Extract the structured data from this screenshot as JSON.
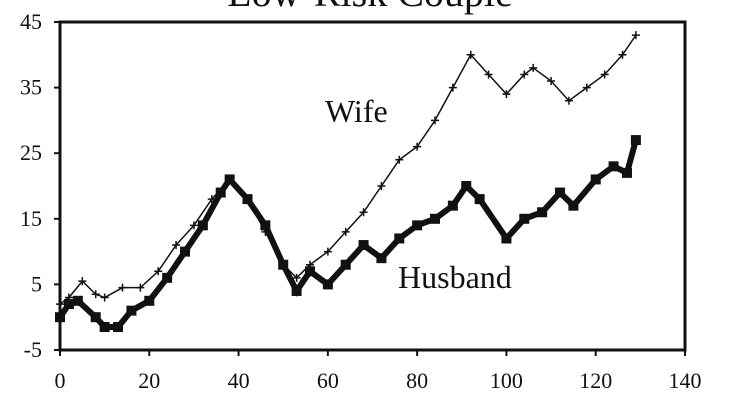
{
  "chart_data": {
    "type": "line",
    "title": "Low-Risk Couple",
    "xlim": [
      0,
      140
    ],
    "xticks": [
      0,
      20,
      40,
      60,
      80,
      100,
      120,
      140
    ],
    "ylim": [
      -5,
      45
    ],
    "yticks": [
      -5,
      5,
      15,
      25,
      35,
      45
    ],
    "series": [
      {
        "name": "Wife",
        "color": "#111111",
        "marker": "plus",
        "x": [
          0,
          2,
          5,
          8,
          10,
          14,
          18,
          22,
          26,
          30,
          34,
          38,
          42,
          46,
          50,
          53,
          56,
          60,
          64,
          68,
          72,
          76,
          80,
          84,
          88,
          92,
          96,
          100,
          104,
          106,
          110,
          114,
          118,
          122,
          126,
          129
        ],
        "values": [
          2,
          3,
          5.5,
          3.5,
          3,
          4.5,
          4.5,
          7,
          11,
          14,
          18,
          21,
          18,
          13,
          8,
          6,
          8,
          10,
          13,
          16,
          20,
          24,
          26,
          30,
          35,
          40,
          37,
          34,
          37,
          38,
          36,
          33,
          35,
          37,
          40,
          43
        ]
      },
      {
        "name": "Husband",
        "color": "#111111",
        "marker": "square",
        "x": [
          0,
          2,
          4,
          8,
          10,
          13,
          16,
          20,
          24,
          28,
          32,
          36,
          38,
          42,
          46,
          50,
          53,
          56,
          60,
          64,
          68,
          72,
          76,
          80,
          84,
          88,
          91,
          94,
          100,
          104,
          108,
          112,
          115,
          120,
          124,
          127,
          129
        ],
        "values": [
          0,
          2,
          2.5,
          0,
          -1.5,
          -1.5,
          1,
          2.5,
          6,
          10,
          14,
          19,
          21,
          18,
          14,
          8,
          4,
          7,
          5,
          8,
          11,
          9,
          12,
          14,
          15,
          17,
          20,
          18,
          12,
          15,
          16,
          19,
          17,
          21,
          23,
          22,
          27
        ]
      }
    ]
  }
}
